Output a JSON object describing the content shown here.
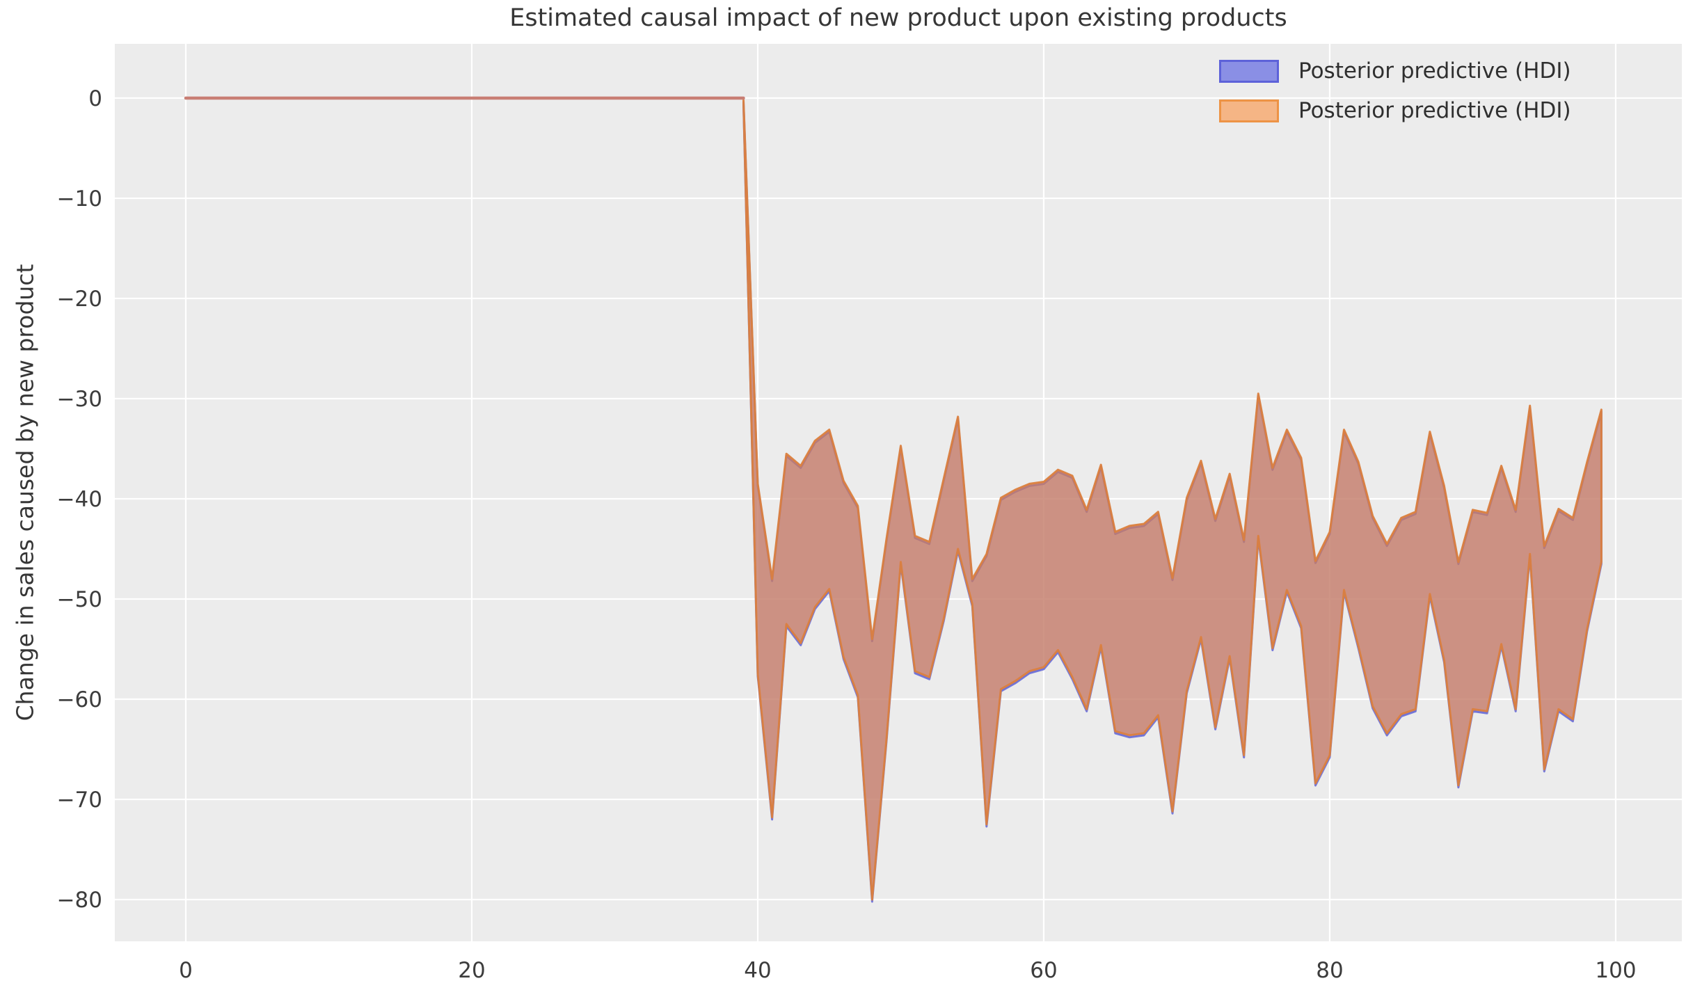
{
  "title": "Estimated causal impact of new product upon existing products",
  "ylabel": "Change in sales caused by new product",
  "legend": [
    {
      "label": "Posterior predictive (HDI)",
      "fill": "#8a8fe5",
      "border": "#5d62d9"
    },
    {
      "label": "Posterior predictive (HDI)",
      "fill": "#f5b585",
      "border": "#ed9345"
    }
  ],
  "colors": {
    "page_bg": "#ffffff",
    "plot_bg": "#ececec",
    "grid": "#ffffff",
    "text": "#363636",
    "tick_text": "#3c3c3c",
    "blue_fill": "#6a6fe0",
    "blue_edge": "#6165d5",
    "orange_fill": "#e07f45",
    "orange_edge": "#db7f3e",
    "band_overlap": "#c6928c",
    "pre_line": "#c87e74"
  },
  "chart_data": {
    "type": "area",
    "title": "Estimated causal impact of new product upon existing products",
    "xlabel": "",
    "ylabel": "Change in sales caused by new product",
    "xlim": [
      -5,
      104.6
    ],
    "ylim": [
      -84.2,
      5.4
    ],
    "grid": true,
    "legend_position": "upper right",
    "x_ticks": [
      0,
      20,
      40,
      60,
      80,
      100
    ],
    "x_tick_labels": [
      "0",
      "20",
      "40",
      "60",
      "80",
      "100"
    ],
    "y_ticks": [
      0,
      -10,
      -20,
      -30,
      -40,
      -50,
      -60,
      -70,
      -80
    ],
    "y_tick_labels": [
      "0",
      "−10",
      "−20",
      "−30",
      "−40",
      "−50",
      "−60",
      "−70",
      "−80"
    ],
    "pre_period": {
      "x": [
        0,
        39
      ],
      "value": 0
    },
    "series": [
      {
        "name": "Posterior predictive (HDI)",
        "role": "hdi-band-blue"
      },
      {
        "name": "Posterior predictive (HDI)",
        "role": "hdi-band-orange"
      }
    ],
    "band": {
      "x": [
        39,
        40,
        41,
        42,
        43,
        44,
        45,
        46,
        47,
        48,
        49,
        50,
        51,
        52,
        53,
        54,
        55,
        56,
        57,
        58,
        59,
        60,
        61,
        62,
        63,
        64,
        65,
        66,
        67,
        68,
        69,
        70,
        71,
        72,
        73,
        74,
        75,
        76,
        77,
        78,
        79,
        80,
        81,
        82,
        83,
        84,
        85,
        86,
        87,
        88,
        89,
        90,
        91,
        92,
        93,
        94,
        95,
        96,
        97,
        98,
        99
      ],
      "upper": [
        -0.2,
        -38.5,
        -48,
        -35.5,
        -36.7,
        -34.2,
        -33.1,
        -38.2,
        -40.7,
        -54,
        -44,
        -34.7,
        -43.7,
        -44.3,
        -38,
        -31.8,
        -48,
        -45.5,
        -39.9,
        -39.1,
        -38.5,
        -38.3,
        -37.1,
        -37.7,
        -41.1,
        -36.6,
        -43.3,
        -42.7,
        -42.5,
        -41.3,
        -47.9,
        -39.9,
        -36.2,
        -42,
        -37.5,
        -44.1,
        -29.5,
        -36.9,
        -33.1,
        -35.9,
        -46.2,
        -43.3,
        -33.1,
        -36.3,
        -41.7,
        -44.5,
        -41.9,
        -41.3,
        -33.3,
        -38.7,
        -46.3,
        -41.1,
        -41.4,
        -36.7,
        -41.1,
        -30.7,
        -44.7,
        -41,
        -41.9,
        -36.3,
        -31.1
      ],
      "lower": [
        -0.5,
        -57.5,
        -71.8,
        -52.5,
        -54.4,
        -50.8,
        -49,
        -55.8,
        -59.6,
        -80,
        -64,
        -46.3,
        -57.2,
        -57.8,
        -52,
        -45,
        -50.5,
        -72.5,
        -59,
        -58.2,
        -57.2,
        -56.8,
        -55.1,
        -57.8,
        -61,
        -54.6,
        -63.2,
        -63.6,
        -63.4,
        -61.6,
        -71.2,
        -59.2,
        -53.8,
        -62.8,
        -55.7,
        -65.6,
        -43.7,
        -54.9,
        -49.1,
        -52.7,
        -68.4,
        -65.6,
        -49.1,
        -54.7,
        -60.7,
        -63.4,
        -61.5,
        -61,
        -49.5,
        -56.1,
        -68.6,
        -61,
        -61.2,
        -54.5,
        -61,
        -45.5,
        -67,
        -61,
        -62,
        -53,
        -46.3
      ]
    }
  }
}
